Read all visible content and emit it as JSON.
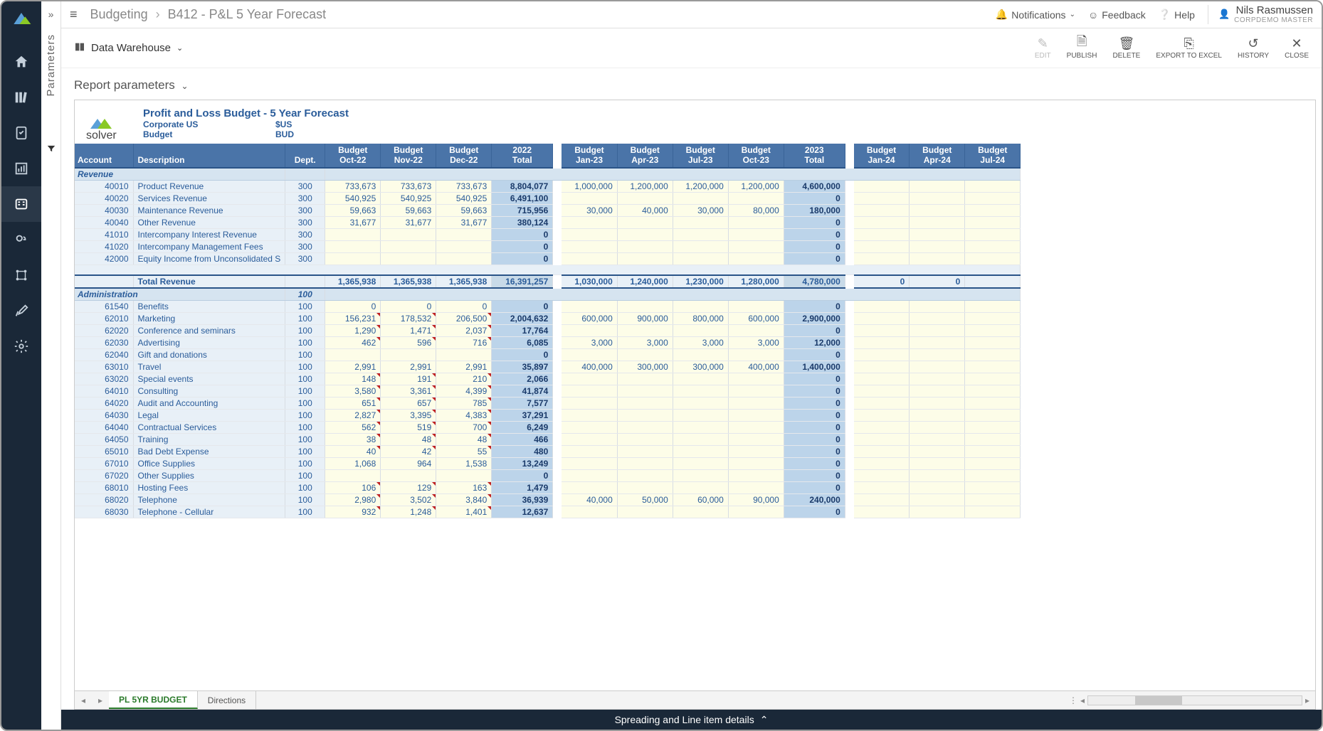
{
  "breadcrumb": {
    "root": "Budgeting",
    "page": "B412 - P&L 5 Year Forecast"
  },
  "topbar": {
    "notifications": "Notifications",
    "feedback": "Feedback",
    "help": "Help",
    "user_name": "Nils Rasmussen",
    "user_role": "CORPDEMO MASTER"
  },
  "toolbar": {
    "datasource": "Data Warehouse",
    "actions": {
      "edit": "EDIT",
      "publish": "PUBLISH",
      "delete": "DELETE",
      "export": "EXPORT TO EXCEL",
      "history": "HISTORY",
      "close": "CLOSE"
    }
  },
  "params_tab": "Parameters",
  "report_params_label": "Report parameters",
  "report": {
    "title": "Profit and Loss Budget - 5 Year Forecast",
    "logo_text": "solver",
    "meta": [
      {
        "label": "Corporate US",
        "value": "$US"
      },
      {
        "label": "Budget",
        "value": "BUD"
      }
    ],
    "columns_fixed": [
      "Account",
      "Description",
      "Dept."
    ],
    "period_groups": [
      {
        "periods": [
          "Budget\nOct-22",
          "Budget\nNov-22",
          "Budget\nDec-22"
        ],
        "total": "2022\nTotal"
      },
      {
        "periods": [
          "Budget\nJan-23",
          "Budget\nApr-23",
          "Budget\nJul-23",
          "Budget\nOct-23"
        ],
        "total": "2023\nTotal"
      },
      {
        "periods": [
          "Budget\nJan-24",
          "Budget\nApr-24",
          "Budget\nJul-24"
        ],
        "total": ""
      }
    ],
    "sections": [
      {
        "name": "Revenue",
        "dept_header": "",
        "rows": [
          {
            "acct": "40010",
            "desc": "Product Revenue",
            "dept": "300",
            "g1": [
              "733,673",
              "733,673",
              "733,673"
            ],
            "t1": "8,804,077",
            "g2": [
              "1,000,000",
              "1,200,000",
              "1,200,000",
              "1,200,000"
            ],
            "t2": "4,600,000",
            "g3": [
              "",
              "",
              ""
            ],
            "tick": [
              false,
              false,
              false
            ]
          },
          {
            "acct": "40020",
            "desc": "Services Revenue",
            "dept": "300",
            "g1": [
              "540,925",
              "540,925",
              "540,925"
            ],
            "t1": "6,491,100",
            "g2": [
              "",
              "",
              "",
              ""
            ],
            "t2": "0",
            "g3": [
              "",
              "",
              ""
            ],
            "tick": [
              false,
              false,
              false
            ]
          },
          {
            "acct": "40030",
            "desc": "Maintenance Revenue",
            "dept": "300",
            "g1": [
              "59,663",
              "59,663",
              "59,663"
            ],
            "t1": "715,956",
            "g2": [
              "30,000",
              "40,000",
              "30,000",
              "80,000"
            ],
            "t2": "180,000",
            "g3": [
              "",
              "",
              ""
            ],
            "tick": [
              false,
              false,
              false
            ]
          },
          {
            "acct": "40040",
            "desc": "Other Revenue",
            "dept": "300",
            "g1": [
              "31,677",
              "31,677",
              "31,677"
            ],
            "t1": "380,124",
            "g2": [
              "",
              "",
              "",
              ""
            ],
            "t2": "0",
            "g3": [
              "",
              "",
              ""
            ],
            "tick": [
              false,
              false,
              false
            ]
          },
          {
            "acct": "41010",
            "desc": "Intercompany Interest Revenue",
            "dept": "300",
            "g1": [
              "",
              "",
              ""
            ],
            "t1": "0",
            "g2": [
              "",
              "",
              "",
              ""
            ],
            "t2": "0",
            "g3": [
              "",
              "",
              ""
            ],
            "tick": [
              false,
              false,
              false
            ]
          },
          {
            "acct": "41020",
            "desc": "Intercompany Management Fees",
            "dept": "300",
            "g1": [
              "",
              "",
              ""
            ],
            "t1": "0",
            "g2": [
              "",
              "",
              "",
              ""
            ],
            "t2": "0",
            "g3": [
              "",
              "",
              ""
            ],
            "tick": [
              false,
              false,
              false
            ]
          },
          {
            "acct": "42000",
            "desc": "Equity Income from Unconsolidated S",
            "dept": "300",
            "g1": [
              "",
              "",
              ""
            ],
            "t1": "0",
            "g2": [
              "",
              "",
              "",
              ""
            ],
            "t2": "0",
            "g3": [
              "",
              "",
              ""
            ],
            "tick": [
              false,
              false,
              false
            ]
          }
        ],
        "total": {
          "label": "Total Revenue",
          "g1": [
            "1,365,938",
            "1,365,938",
            "1,365,938"
          ],
          "t1": "16,391,257",
          "g2": [
            "1,030,000",
            "1,240,000",
            "1,230,000",
            "1,280,000"
          ],
          "t2": "4,780,000",
          "g3": [
            "0",
            "0",
            ""
          ]
        }
      },
      {
        "name": "Administration",
        "dept_header": "100",
        "rows": [
          {
            "acct": "61540",
            "desc": "Benefits",
            "dept": "100",
            "g1": [
              "0",
              "0",
              "0"
            ],
            "t1": "0",
            "g2": [
              "",
              "",
              "",
              ""
            ],
            "t2": "0",
            "g3": [
              "",
              "",
              ""
            ],
            "tick": [
              false,
              false,
              false
            ]
          },
          {
            "acct": "62010",
            "desc": "Marketing",
            "dept": "100",
            "g1": [
              "156,231",
              "178,532",
              "206,500"
            ],
            "t1": "2,004,632",
            "g2": [
              "600,000",
              "900,000",
              "800,000",
              "600,000"
            ],
            "t2": "2,900,000",
            "g3": [
              "",
              "",
              ""
            ],
            "tick": [
              true,
              true,
              true
            ]
          },
          {
            "acct": "62020",
            "desc": "Conference and seminars",
            "dept": "100",
            "g1": [
              "1,290",
              "1,471",
              "2,037"
            ],
            "t1": "17,764",
            "g2": [
              "",
              "",
              "",
              ""
            ],
            "t2": "0",
            "g3": [
              "",
              "",
              ""
            ],
            "tick": [
              true,
              true,
              true
            ]
          },
          {
            "acct": "62030",
            "desc": "Advertising",
            "dept": "100",
            "g1": [
              "462",
              "596",
              "716"
            ],
            "t1": "6,085",
            "g2": [
              "3,000",
              "3,000",
              "3,000",
              "3,000"
            ],
            "t2": "12,000",
            "g3": [
              "",
              "",
              ""
            ],
            "tick": [
              true,
              true,
              true
            ]
          },
          {
            "acct": "62040",
            "desc": "Gift and donations",
            "dept": "100",
            "g1": [
              "",
              "",
              ""
            ],
            "t1": "0",
            "g2": [
              "",
              "",
              "",
              ""
            ],
            "t2": "0",
            "g3": [
              "",
              "",
              ""
            ],
            "tick": [
              false,
              false,
              false
            ]
          },
          {
            "acct": "63010",
            "desc": "Travel",
            "dept": "100",
            "g1": [
              "2,991",
              "2,991",
              "2,991"
            ],
            "t1": "35,897",
            "g2": [
              "400,000",
              "300,000",
              "300,000",
              "400,000"
            ],
            "t2": "1,400,000",
            "g3": [
              "",
              "",
              ""
            ],
            "tick": [
              false,
              false,
              false
            ]
          },
          {
            "acct": "63020",
            "desc": "Special events",
            "dept": "100",
            "g1": [
              "148",
              "191",
              "210"
            ],
            "t1": "2,066",
            "g2": [
              "",
              "",
              "",
              ""
            ],
            "t2": "0",
            "g3": [
              "",
              "",
              ""
            ],
            "tick": [
              true,
              true,
              true
            ]
          },
          {
            "acct": "64010",
            "desc": "Consulting",
            "dept": "100",
            "g1": [
              "3,580",
              "3,361",
              "4,399"
            ],
            "t1": "41,874",
            "g2": [
              "",
              "",
              "",
              ""
            ],
            "t2": "0",
            "g3": [
              "",
              "",
              ""
            ],
            "tick": [
              true,
              true,
              true
            ]
          },
          {
            "acct": "64020",
            "desc": "Audit and Accounting",
            "dept": "100",
            "g1": [
              "651",
              "657",
              "785"
            ],
            "t1": "7,577",
            "g2": [
              "",
              "",
              "",
              ""
            ],
            "t2": "0",
            "g3": [
              "",
              "",
              ""
            ],
            "tick": [
              true,
              true,
              true
            ]
          },
          {
            "acct": "64030",
            "desc": "Legal",
            "dept": "100",
            "g1": [
              "2,827",
              "3,395",
              "4,383"
            ],
            "t1": "37,291",
            "g2": [
              "",
              "",
              "",
              ""
            ],
            "t2": "0",
            "g3": [
              "",
              "",
              ""
            ],
            "tick": [
              true,
              true,
              true
            ]
          },
          {
            "acct": "64040",
            "desc": "Contractual Services",
            "dept": "100",
            "g1": [
              "562",
              "519",
              "700"
            ],
            "t1": "6,249",
            "g2": [
              "",
              "",
              "",
              ""
            ],
            "t2": "0",
            "g3": [
              "",
              "",
              ""
            ],
            "tick": [
              true,
              true,
              true
            ]
          },
          {
            "acct": "64050",
            "desc": "Training",
            "dept": "100",
            "g1": [
              "38",
              "48",
              "48"
            ],
            "t1": "466",
            "g2": [
              "",
              "",
              "",
              ""
            ],
            "t2": "0",
            "g3": [
              "",
              "",
              ""
            ],
            "tick": [
              true,
              true,
              true
            ]
          },
          {
            "acct": "65010",
            "desc": "Bad Debt Expense",
            "dept": "100",
            "g1": [
              "40",
              "42",
              "55"
            ],
            "t1": "480",
            "g2": [
              "",
              "",
              "",
              ""
            ],
            "t2": "0",
            "g3": [
              "",
              "",
              ""
            ],
            "tick": [
              true,
              true,
              true
            ]
          },
          {
            "acct": "67010",
            "desc": "Office Supplies",
            "dept": "100",
            "g1": [
              "1,068",
              "964",
              "1,538"
            ],
            "t1": "13,249",
            "g2": [
              "",
              "",
              "",
              ""
            ],
            "t2": "0",
            "g3": [
              "",
              "",
              ""
            ],
            "tick": [
              false,
              false,
              false
            ]
          },
          {
            "acct": "67020",
            "desc": "Other Supplies",
            "dept": "100",
            "g1": [
              "",
              "",
              ""
            ],
            "t1": "0",
            "g2": [
              "",
              "",
              "",
              ""
            ],
            "t2": "0",
            "g3": [
              "",
              "",
              ""
            ],
            "tick": [
              false,
              false,
              false
            ]
          },
          {
            "acct": "68010",
            "desc": "Hosting Fees",
            "dept": "100",
            "g1": [
              "106",
              "129",
              "163"
            ],
            "t1": "1,479",
            "g2": [
              "",
              "",
              "",
              ""
            ],
            "t2": "0",
            "g3": [
              "",
              "",
              ""
            ],
            "tick": [
              true,
              true,
              true
            ]
          },
          {
            "acct": "68020",
            "desc": "Telephone",
            "dept": "100",
            "g1": [
              "2,980",
              "3,502",
              "3,840"
            ],
            "t1": "36,939",
            "g2": [
              "40,000",
              "50,000",
              "60,000",
              "90,000"
            ],
            "t2": "240,000",
            "g3": [
              "",
              "",
              ""
            ],
            "tick": [
              true,
              true,
              true
            ]
          },
          {
            "acct": "68030",
            "desc": "Telephone - Cellular",
            "dept": "100",
            "g1": [
              "932",
              "1,248",
              "1,401"
            ],
            "t1": "12,637",
            "g2": [
              "",
              "",
              "",
              ""
            ],
            "t2": "0",
            "g3": [
              "",
              "",
              ""
            ],
            "tick": [
              true,
              true,
              true
            ]
          }
        ]
      }
    ]
  },
  "sheet_tabs": {
    "active": "PL 5YR BUDGET",
    "other": "Directions"
  },
  "bottom_drawer": "Spreading and Line item details",
  "colors": {
    "header_bg": "#4a74a8",
    "section_bg": "#d6e4f0",
    "fixed_cell_bg": "#e8f0f7",
    "input_cell_bg": "#fdfde8",
    "total_cell_bg": "#bcd4ea",
    "text_primary": "#2a5c9a",
    "nav_bg": "#1a2838"
  }
}
